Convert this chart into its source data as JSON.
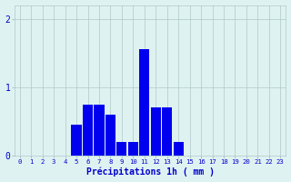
{
  "hours": [
    0,
    1,
    2,
    3,
    4,
    5,
    6,
    7,
    8,
    9,
    10,
    11,
    12,
    13,
    14,
    15,
    16,
    17,
    18,
    19,
    20,
    21,
    22,
    23
  ],
  "values": [
    0,
    0,
    0,
    0,
    0,
    0.45,
    0.75,
    0.75,
    0.6,
    0.2,
    0.2,
    1.55,
    0.7,
    0.7,
    0.2,
    0,
    0,
    0,
    0,
    0,
    0,
    0,
    0,
    0
  ],
  "bar_color": "#0000ee",
  "bg_color": "#dff2f2",
  "grid_color": "#b0c8c8",
  "xlabel": "Précipitations 1h ( mm )",
  "xlabel_color": "#0000cc",
  "tick_color": "#0000cc",
  "yticks": [
    0,
    1,
    2
  ],
  "ylim": [
    0,
    2.2
  ],
  "xlim": [
    -0.5,
    23.5
  ],
  "figwidth": 3.2,
  "figheight": 2.0,
  "dpi": 100
}
